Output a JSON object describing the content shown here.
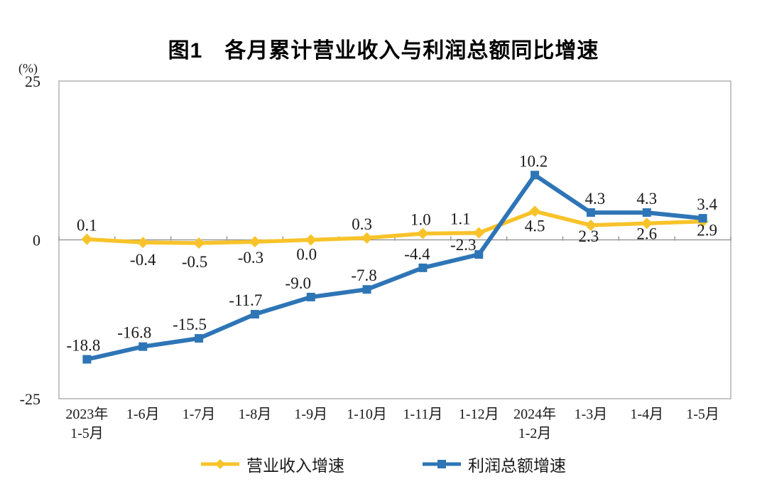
{
  "page": {
    "background": "#ffffff"
  },
  "chart_data": {
    "type": "line",
    "title": "图1　各月累计营业收入与利润总额同比增速",
    "y_unit": "(%)",
    "ylim": [
      -25,
      25
    ],
    "y_ticks": [
      25,
      0,
      -25
    ],
    "grid": false,
    "legend_position": "bottom",
    "axis_color": "#a6a6a6",
    "zero_line_color": "#8c8c8c",
    "text_color": "#1a1a1a",
    "categories": [
      [
        "2023年",
        "1-5月"
      ],
      [
        "1-6月"
      ],
      [
        "1-7月"
      ],
      [
        "1-8月"
      ],
      [
        "1-9月"
      ],
      [
        "1-10月"
      ],
      [
        "1-11月"
      ],
      [
        "1-12月"
      ],
      [
        "2024年",
        "1-2月"
      ],
      [
        "1-3月"
      ],
      [
        "1-4月"
      ],
      [
        "1-5月"
      ]
    ],
    "series": [
      {
        "name": "营业收入增速",
        "color": "#F8C32A",
        "marker": "diamond",
        "values": [
          0.1,
          -0.4,
          -0.5,
          -0.3,
          0.0,
          0.3,
          1.0,
          1.1,
          4.5,
          2.3,
          2.6,
          2.9
        ],
        "label_pos": [
          "above",
          "below",
          "below",
          "below",
          "below",
          "above",
          "above",
          "above",
          "below",
          "below",
          "below",
          "below"
        ],
        "label_dx": [
          0,
          0,
          -6,
          -6,
          -6,
          -7,
          -3,
          -26,
          0,
          -3,
          0,
          6
        ],
        "label_dy": [
          0,
          6,
          8,
          4,
          2,
          0,
          0,
          0,
          2,
          -3,
          -4,
          -6
        ]
      },
      {
        "name": "利润总额增速",
        "color": "#2E75B6",
        "marker": "square",
        "values": [
          -18.8,
          -16.8,
          -15.5,
          -11.7,
          -9.0,
          -7.8,
          -4.4,
          -2.3,
          10.2,
          4.3,
          4.3,
          3.4
        ],
        "label_pos": [
          "above",
          "above",
          "above",
          "above",
          "above",
          "above",
          "above",
          "above",
          "above",
          "above",
          "above",
          "above"
        ],
        "label_dx": [
          -5,
          -12,
          -13,
          -13,
          -18,
          -4,
          -8,
          -22,
          -2,
          6,
          0,
          6
        ],
        "label_dy": [
          0,
          0,
          0,
          0,
          0,
          0,
          0,
          6,
          0,
          0,
          0,
          0
        ]
      }
    ]
  }
}
